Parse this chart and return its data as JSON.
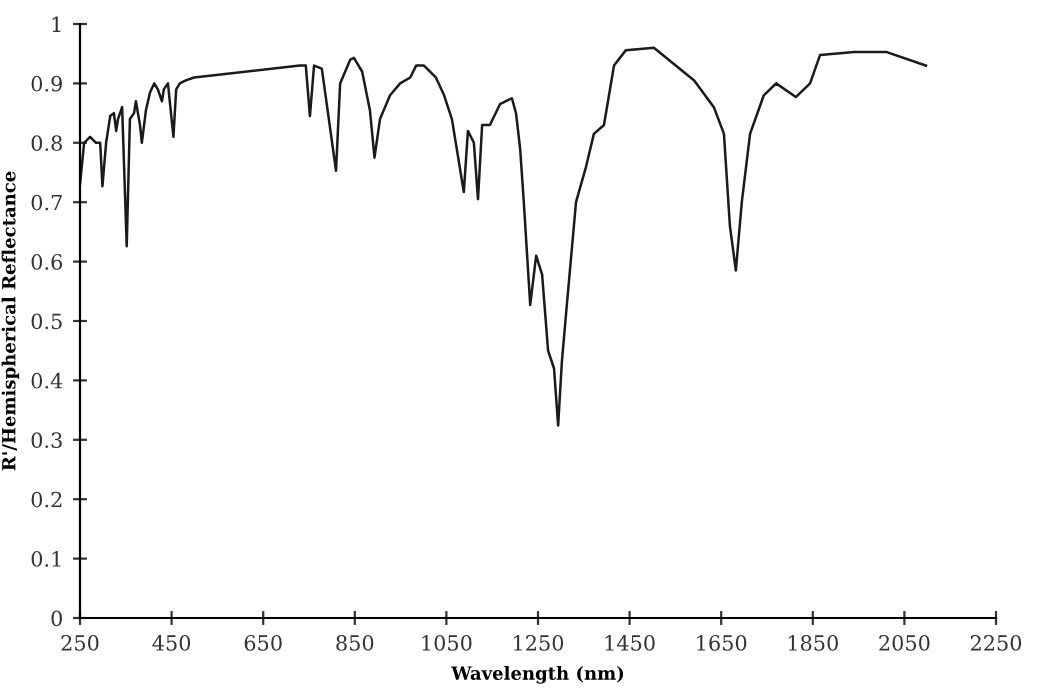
{
  "chart_data": {
    "type": "line",
    "xlabel": "Wavelength (nm)",
    "ylabel": "R'/Hemispherical Reflectance",
    "x": [
      250,
      259,
      272,
      285,
      294,
      299,
      307,
      316,
      324,
      329,
      333,
      342,
      352,
      359,
      368,
      372,
      381,
      385,
      394,
      403,
      412,
      420,
      429,
      433,
      442,
      454,
      460,
      468,
      481,
      499,
      730,
      743,
      752,
      761,
      778,
      809,
      818,
      840,
      848,
      866,
      883,
      893,
      905,
      927,
      949,
      971,
      984,
      1001,
      1027,
      1045,
      1062,
      1088,
      1097,
      1110,
      1119,
      1128,
      1145,
      1167,
      1193,
      1202,
      1211,
      1219,
      1233,
      1246,
      1259,
      1272,
      1285,
      1294,
      1302,
      1311,
      1333,
      1355,
      1372,
      1394,
      1416,
      1442,
      1503,
      1591,
      1634,
      1656,
      1669,
      1682,
      1695,
      1713,
      1743,
      1770,
      1813,
      1844,
      1866,
      1940,
      2010,
      2097
    ],
    "series": [
      {
        "color": "#1a1a1a",
        "values": [
          0.73,
          0.8,
          0.81,
          0.8,
          0.8,
          0.727,
          0.8,
          0.845,
          0.85,
          0.82,
          0.84,
          0.86,
          0.626,
          0.84,
          0.85,
          0.87,
          0.83,
          0.8,
          0.855,
          0.885,
          0.9,
          0.89,
          0.87,
          0.89,
          0.9,
          0.81,
          0.89,
          0.9,
          0.905,
          0.91,
          0.93,
          0.93,
          0.845,
          0.93,
          0.925,
          0.753,
          0.9,
          0.94,
          0.943,
          0.92,
          0.855,
          0.775,
          0.84,
          0.88,
          0.9,
          0.91,
          0.93,
          0.93,
          0.91,
          0.88,
          0.84,
          0.717,
          0.82,
          0.8,
          0.705,
          0.83,
          0.83,
          0.865,
          0.875,
          0.85,
          0.79,
          0.7,
          0.527,
          0.61,
          0.578,
          0.45,
          0.42,
          0.324,
          0.43,
          0.51,
          0.7,
          0.76,
          0.815,
          0.83,
          0.93,
          0.956,
          0.96,
          0.905,
          0.86,
          0.815,
          0.66,
          0.585,
          0.7,
          0.815,
          0.88,
          0.9,
          0.877,
          0.9,
          0.948,
          0.953,
          0.953,
          0.93
        ]
      }
    ],
    "xlim": [
      250,
      2250
    ],
    "xticks": [
      250,
      450,
      650,
      850,
      1050,
      1250,
      1450,
      1650,
      1850,
      2050,
      2250
    ],
    "ylim": [
      0,
      1
    ],
    "yticks": [
      0,
      0.1,
      0.2,
      0.3,
      0.4,
      0.5,
      0.6,
      0.7,
      0.8,
      0.9,
      1
    ],
    "grid": false,
    "legend": false
  }
}
